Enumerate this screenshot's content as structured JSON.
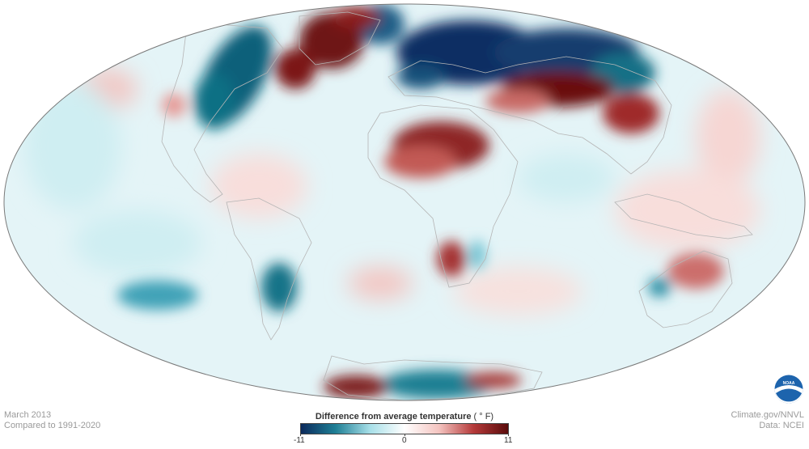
{
  "caption": {
    "month": "March 2013",
    "baseline": "Compared to 1991-2020"
  },
  "credits": {
    "source": "Climate.gov/NNVL",
    "data": "Data: NCEI"
  },
  "legend": {
    "title": "Difference from average temperature",
    "unit": "( ° F)",
    "min_label": "-11",
    "mid_label": "0",
    "max_label": "11",
    "colors": [
      "#0b2a5c",
      "#1f7f95",
      "#a7dfe8",
      "#ffffff",
      "#f4c4c0",
      "#b53a3a",
      "#5a0b0b"
    ]
  },
  "logo": {
    "text": "NOAA"
  },
  "icons": [
    "noaa-logo-icon"
  ]
}
